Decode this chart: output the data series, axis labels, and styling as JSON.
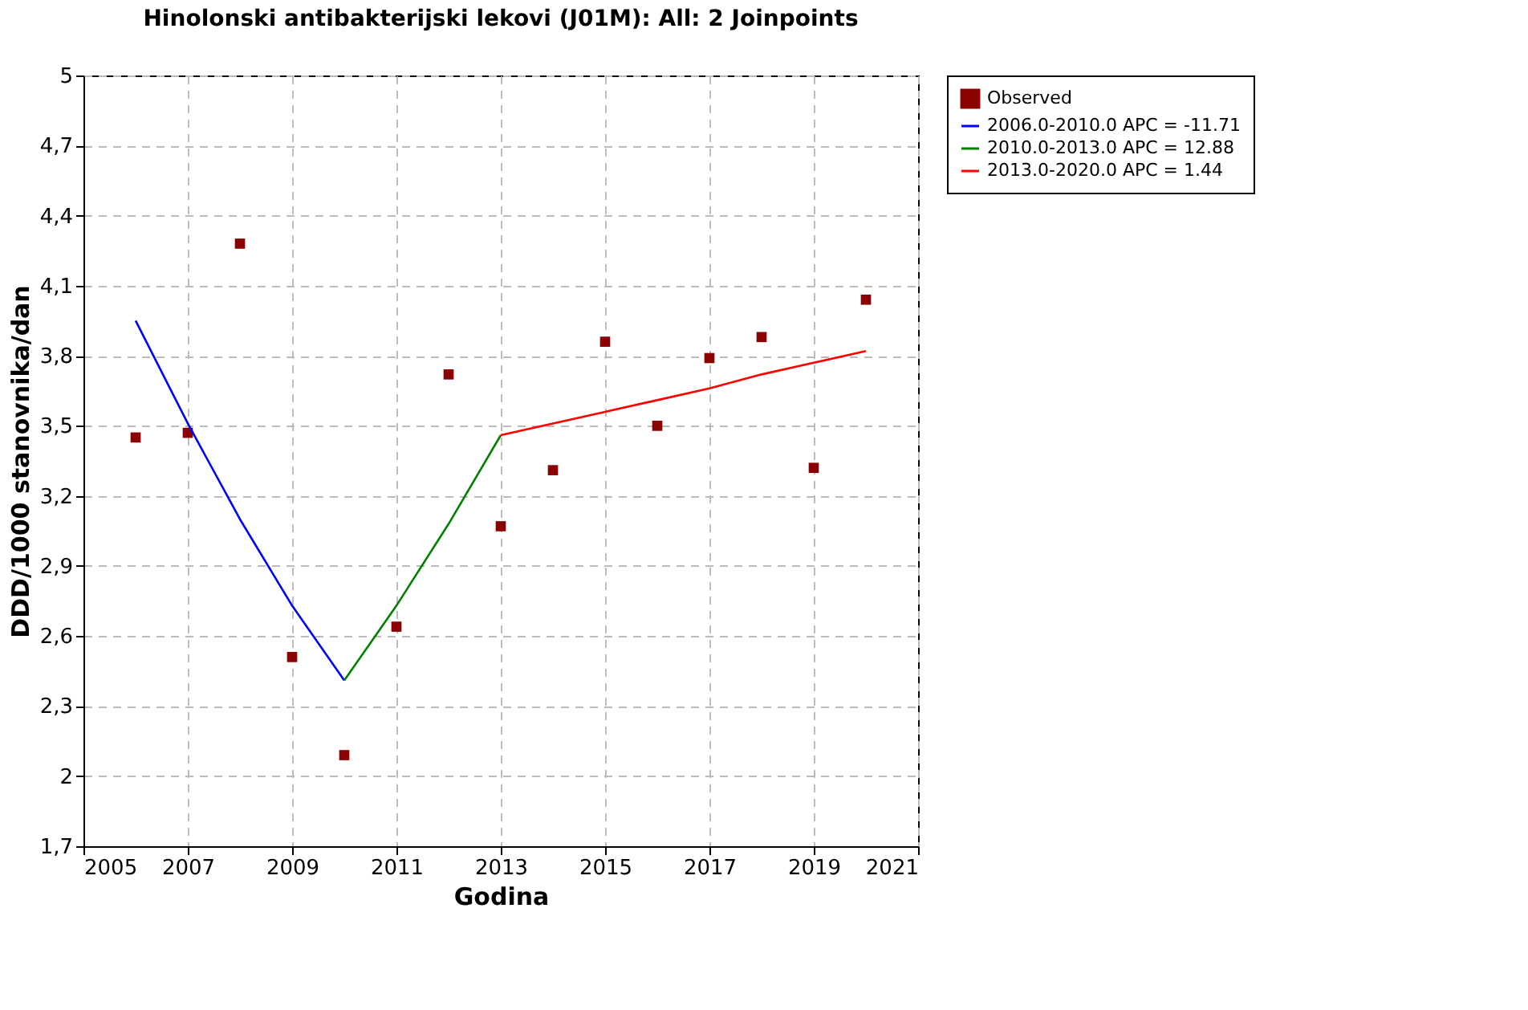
{
  "chart_data": {
    "type": "scatter",
    "title": "Hinolonski antibakterijski lekovi (J01M): All: 2 Joinpoints",
    "xlabel": "Godina",
    "ylabel": "DDD/1000 stanovnika/dan",
    "x": [
      2006,
      2007,
      2008,
      2009,
      2010,
      2011,
      2012,
      2013,
      2014,
      2015,
      2016,
      2017,
      2018,
      2019,
      2020
    ],
    "series": [
      {
        "name": "Observed",
        "color": "#8b0000",
        "marker": "square",
        "values": [
          3.45,
          3.47,
          4.28,
          2.51,
          2.09,
          2.64,
          3.72,
          3.07,
          3.31,
          3.86,
          3.5,
          3.79,
          3.88,
          3.32,
          4.04
        ]
      },
      {
        "name": "2006.0-2010.0 APC = -11.71",
        "type": "line",
        "color": "#0000ff",
        "x": [
          2006,
          2007,
          2008,
          2009,
          2010
        ],
        "values": [
          3.95,
          3.51,
          3.1,
          2.73,
          2.41
        ]
      },
      {
        "name": "2010.0-2013.0 APC = 12.88",
        "type": "line",
        "color": "#008000",
        "x": [
          2010,
          2011,
          2012,
          2013
        ],
        "values": [
          2.41,
          2.73,
          3.08,
          3.46
        ]
      },
      {
        "name": "2013.0-2020.0 APC = 1.44",
        "type": "line",
        "color": "#ff0000",
        "x": [
          2013,
          2014,
          2015,
          2016,
          2017,
          2018,
          2019,
          2020
        ],
        "values": [
          3.46,
          3.51,
          3.56,
          3.61,
          3.66,
          3.72,
          3.77,
          3.82
        ]
      }
    ],
    "xlim": [
      2005,
      2021
    ],
    "xticks": [
      2005,
      2007,
      2009,
      2011,
      2013,
      2015,
      2017,
      2019,
      2021
    ],
    "ylim": [
      1.7,
      5
    ],
    "yticks": [
      {
        "value": 1.7,
        "label": "1,7"
      },
      {
        "value": 2,
        "label": "2"
      },
      {
        "value": 2.3,
        "label": "2,3"
      },
      {
        "value": 2.6,
        "label": "2,6"
      },
      {
        "value": 2.9,
        "label": "2,9"
      },
      {
        "value": 3.2,
        "label": "3,2"
      },
      {
        "value": 3.5,
        "label": "3,5"
      },
      {
        "value": 3.8,
        "label": "3,8"
      },
      {
        "value": 4.1,
        "label": "4,1"
      },
      {
        "value": 4.4,
        "label": "4,4"
      },
      {
        "value": 4.7,
        "label": "4,7"
      },
      {
        "value": 5,
        "label": "5"
      }
    ],
    "grid": true,
    "legend": "top right",
    "line_style": "solid"
  }
}
